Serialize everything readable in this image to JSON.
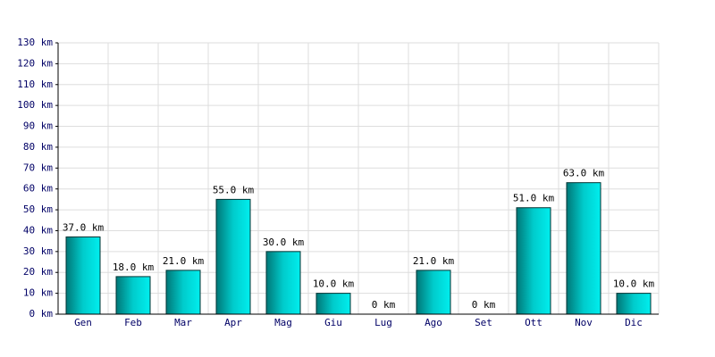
{
  "chart_data": {
    "type": "bar",
    "categories": [
      "Gen",
      "Feb",
      "Mar",
      "Apr",
      "Mag",
      "Giu",
      "Lug",
      "Ago",
      "Set",
      "Ott",
      "Nov",
      "Dic"
    ],
    "values": [
      37,
      18,
      21,
      55,
      30,
      10,
      0,
      21,
      0,
      51,
      63,
      10
    ],
    "value_labels": [
      "37.0 km",
      "18.0 km",
      "21.0 km",
      "55.0 km",
      "30.0 km",
      "10.0 km",
      "0 km",
      "21.0 km",
      "0 km",
      "51.0 km",
      "63.0 km",
      "10.0 km"
    ],
    "color": "#00cccc",
    "ylim": [
      0,
      130
    ],
    "yticks": [
      {
        "value": 0,
        "label": "0 km"
      },
      {
        "value": 10,
        "label": "10 km"
      },
      {
        "value": 20,
        "label": "20 km"
      },
      {
        "value": 30,
        "label": "30 km"
      },
      {
        "value": 40,
        "label": "40 km"
      },
      {
        "value": 50,
        "label": "50 km"
      },
      {
        "value": 60,
        "label": "60 km"
      },
      {
        "value": 70,
        "label": "70 km"
      },
      {
        "value": 80,
        "label": "80 km"
      },
      {
        "value": 90,
        "label": "90 km"
      },
      {
        "value": 100,
        "label": "100 km"
      },
      {
        "value": 110,
        "label": "110 km"
      },
      {
        "value": 120,
        "label": "120 km"
      },
      {
        "value": 130,
        "label": "130 km"
      }
    ],
    "grid": true
  }
}
